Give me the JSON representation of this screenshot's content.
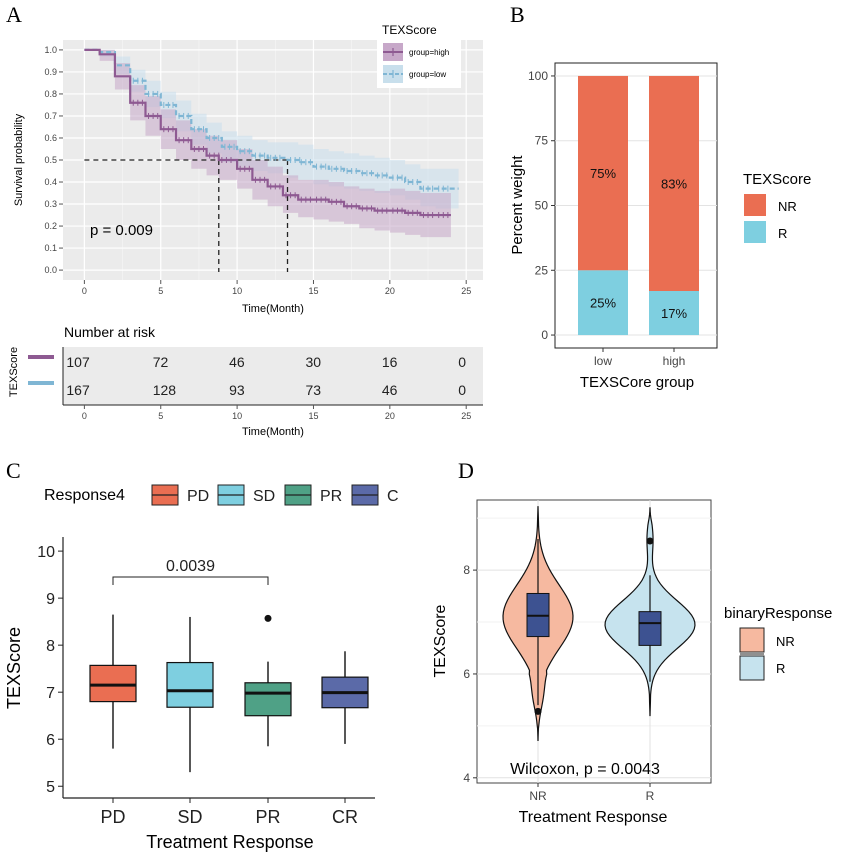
{
  "panels": {
    "A": "A",
    "B": "B",
    "C": "C",
    "D": "D"
  },
  "chart_data": [
    {
      "panel": "A",
      "type": "line",
      "subtype": "kaplan-meier",
      "ylabel": "Survival probability",
      "xlabel": "Time(Month)",
      "xlim": [
        0,
        25
      ],
      "ylim": [
        0,
        1
      ],
      "xticks": [
        "0",
        "5",
        "10",
        "15",
        "20",
        "25"
      ],
      "yticks": [
        "0.0",
        "0.1",
        "0.2",
        "0.3",
        "0.4",
        "0.5",
        "0.6",
        "0.7",
        "0.8",
        "0.9",
        "1.0"
      ],
      "legend_title": "TEXScore",
      "pvalue": "p = 0.009",
      "colors": {
        "high": "#8e5a92",
        "low": "#7fb6d4",
        "band_high": "#c7a8c9",
        "band_low": "#c8dfec"
      },
      "series": [
        {
          "name": "group=high",
          "x": [
            0,
            1,
            2,
            3,
            4,
            5,
            6,
            7,
            8,
            8.8,
            10,
            11,
            12,
            13,
            14,
            15,
            16,
            17,
            18,
            19,
            20,
            21,
            22,
            23,
            24
          ],
          "y": [
            1.0,
            0.98,
            0.88,
            0.76,
            0.7,
            0.64,
            0.59,
            0.55,
            0.52,
            0.5,
            0.46,
            0.41,
            0.38,
            0.34,
            0.32,
            0.32,
            0.31,
            0.29,
            0.28,
            0.27,
            0.27,
            0.26,
            0.25,
            0.25,
            0.25
          ],
          "lower": [
            1.0,
            0.95,
            0.82,
            0.68,
            0.61,
            0.55,
            0.5,
            0.46,
            0.43,
            0.41,
            0.37,
            0.32,
            0.29,
            0.26,
            0.24,
            0.23,
            0.22,
            0.21,
            0.19,
            0.18,
            0.17,
            0.16,
            0.15,
            0.15,
            0.15
          ],
          "upper": [
            1.0,
            1.0,
            0.94,
            0.84,
            0.79,
            0.73,
            0.68,
            0.64,
            0.61,
            0.59,
            0.55,
            0.5,
            0.47,
            0.43,
            0.41,
            0.41,
            0.4,
            0.38,
            0.37,
            0.36,
            0.37,
            0.36,
            0.35,
            0.35,
            0.35
          ]
        },
        {
          "name": "group=low",
          "x": [
            0,
            1,
            2,
            3,
            4,
            5,
            6,
            7,
            8,
            9,
            10,
            11,
            12,
            13.3,
            14,
            15,
            16,
            17,
            18,
            19,
            20,
            21,
            22,
            23,
            24.5
          ],
          "y": [
            1.0,
            0.99,
            0.93,
            0.86,
            0.8,
            0.75,
            0.7,
            0.64,
            0.6,
            0.56,
            0.54,
            0.52,
            0.51,
            0.5,
            0.49,
            0.47,
            0.46,
            0.45,
            0.44,
            0.43,
            0.42,
            0.4,
            0.37,
            0.37,
            0.37
          ],
          "lower": [
            1.0,
            0.97,
            0.89,
            0.81,
            0.74,
            0.69,
            0.63,
            0.57,
            0.53,
            0.49,
            0.47,
            0.45,
            0.44,
            0.42,
            0.41,
            0.39,
            0.38,
            0.37,
            0.36,
            0.35,
            0.34,
            0.32,
            0.29,
            0.28,
            0.28
          ],
          "upper": [
            1.0,
            1.0,
            0.97,
            0.91,
            0.86,
            0.81,
            0.77,
            0.71,
            0.67,
            0.63,
            0.61,
            0.59,
            0.58,
            0.58,
            0.57,
            0.55,
            0.54,
            0.53,
            0.52,
            0.51,
            0.5,
            0.48,
            0.46,
            0.46,
            0.46
          ]
        }
      ],
      "median_lines": [
        8.8,
        13.3
      ],
      "risk_table": {
        "title": "Number at risk",
        "ylabel": "TEXScore",
        "xlabel": "Time(Month)",
        "times": [
          0,
          5,
          10,
          15,
          20,
          25
        ],
        "rows": [
          {
            "group": "high",
            "values": [
              "107",
              "72",
              "46",
              "30",
              "16",
              "0"
            ]
          },
          {
            "group": "low",
            "values": [
              "167",
              "128",
              "93",
              "73",
              "46",
              "0"
            ]
          }
        ]
      }
    },
    {
      "panel": "B",
      "type": "bar",
      "subtype": "stacked-percent",
      "categories": [
        "low",
        "high"
      ],
      "series": [
        {
          "name": "NR",
          "values": [
            75,
            83
          ],
          "labels": [
            "75%",
            "83%"
          ],
          "color": "#ea6e52"
        },
        {
          "name": "R",
          "values": [
            25,
            17
          ],
          "labels": [
            "25%",
            "17%"
          ],
          "color": "#7ecfe0"
        }
      ],
      "ylabel": "Percent weight",
      "xlabel": "TEXSCore group",
      "ylim": [
        0,
        100
      ],
      "yticks": [
        "0",
        "25",
        "50",
        "75",
        "100"
      ],
      "legend_title": "TEXScore"
    },
    {
      "panel": "C",
      "type": "box",
      "categories": [
        "PD",
        "SD",
        "PR",
        "CR"
      ],
      "legend_title": "Response4",
      "legend_labels": [
        "PD",
        "SD",
        "PR",
        "C"
      ],
      "colors": [
        "#ea6e52",
        "#7ecfe0",
        "#4fa186",
        "#5b6aa8"
      ],
      "stats": [
        {
          "min": 5.8,
          "q1": 6.8,
          "median": 7.15,
          "q3": 7.57,
          "max": 8.65,
          "outliers": []
        },
        {
          "min": 5.3,
          "q1": 6.68,
          "median": 7.03,
          "q3": 7.63,
          "max": 8.6,
          "outliers": []
        },
        {
          "min": 5.85,
          "q1": 6.5,
          "median": 6.98,
          "q3": 7.2,
          "max": 7.65,
          "outliers": [
            8.57
          ]
        },
        {
          "min": 5.9,
          "q1": 6.67,
          "median": 6.99,
          "q3": 7.32,
          "max": 7.87,
          "outliers": []
        }
      ],
      "ylim": [
        4.75,
        10.3
      ],
      "yticks": [
        "5",
        "6",
        "7",
        "8",
        "9",
        "10"
      ],
      "ylabel": "TEXScore",
      "xlabel": "Treatment Response",
      "bracket": {
        "from": "PD",
        "to": "PR",
        "label": "0.0039"
      }
    },
    {
      "panel": "D",
      "type": "violin",
      "categories": [
        "NR",
        "R"
      ],
      "legend_title": "binaryResponse",
      "legend_labels": [
        "NR",
        "R"
      ],
      "colors": [
        "#f6b9a0",
        "#c6e3ee"
      ],
      "box_color": "#3d5291",
      "stats": [
        {
          "min": 5.4,
          "q1": 6.72,
          "median": 7.12,
          "q3": 7.55,
          "max": 8.6,
          "outliers": [
            5.28
          ],
          "vmin": 4.72,
          "vmax": 9.22
        },
        {
          "min": 5.85,
          "q1": 6.55,
          "median": 6.98,
          "q3": 7.2,
          "max": 7.9,
          "outliers": [
            8.56
          ],
          "vmin": 5.2,
          "vmax": 9.2
        }
      ],
      "ylim": [
        3.9,
        9.35
      ],
      "yticks": [
        "4",
        "6",
        "8"
      ],
      "ylabel": "TEXScore",
      "xlabel": "Treatment Response",
      "annotation": "Wilcoxon, p = 0.0043"
    }
  ]
}
